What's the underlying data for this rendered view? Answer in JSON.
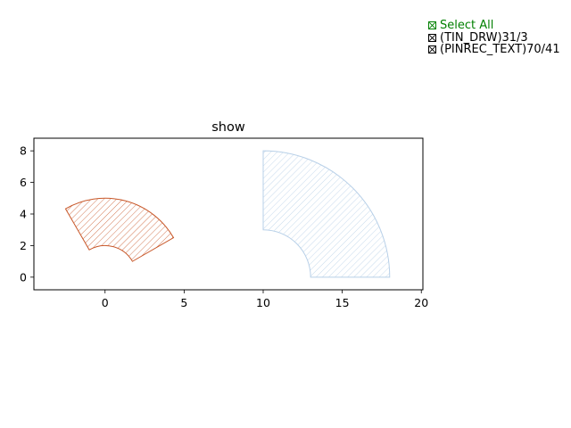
{
  "chart_data": {
    "type": "area",
    "title": "show",
    "xlabel": "",
    "ylabel": "",
    "xlim": [
      -4.5,
      20.1
    ],
    "ylim": [
      -0.8,
      8.8
    ],
    "xticks": [
      0,
      5,
      10,
      15,
      20
    ],
    "yticks": [
      0,
      2,
      4,
      6,
      8
    ],
    "grid": false,
    "series": [
      {
        "name": "(TIN_DRW)31/3",
        "color": "#c8582a",
        "hatch": "diagonal",
        "shape": "annular-sector",
        "center": [
          0,
          0
        ],
        "inner_radius": 2,
        "outer_radius": 5,
        "start_angle_deg": 30,
        "end_angle_deg": 120,
        "points": [
          [
            1.73,
            1.0
          ],
          [
            4.33,
            2.5
          ],
          [
            0,
            5.0
          ],
          [
            -2.5,
            4.33
          ],
          [
            -1.0,
            1.73
          ],
          [
            0,
            2.0
          ]
        ]
      },
      {
        "name": "(PINREC_TEXT)70/41",
        "color": "#b8d0e8",
        "hatch": "diagonal",
        "shape": "annular-sector",
        "center": [
          10,
          0
        ],
        "inner_radius": 3,
        "outer_radius": 8,
        "start_angle_deg": 0,
        "end_angle_deg": 90,
        "points": [
          [
            13,
            0
          ],
          [
            18,
            0
          ],
          [
            10,
            8
          ],
          [
            10,
            3
          ]
        ]
      }
    ]
  },
  "legend": {
    "select_all": "Select All",
    "items": [
      "(TIN_DRW)31/3",
      "(PINREC_TEXT)70/41"
    ]
  }
}
